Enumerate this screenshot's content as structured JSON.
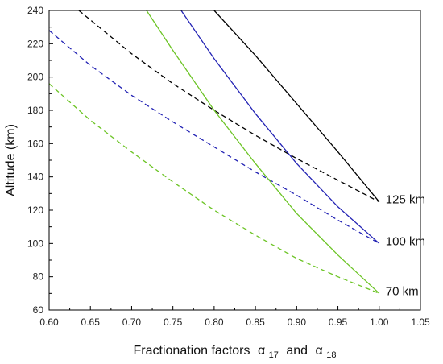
{
  "chart_data": {
    "type": "line",
    "xlabel": "Fractionation factors",
    "xlabel_greek": "α",
    "xlabel_sub1": "17",
    "xlabel_and": "and",
    "xlabel_sub2": "18",
    "ylabel": "Altitude (km)",
    "xlim": [
      0.6,
      1.05
    ],
    "ylim": [
      60,
      240
    ],
    "x_ticks": [
      "0.60",
      "0.65",
      "0.70",
      "0.75",
      "0.80",
      "0.85",
      "0.90",
      "0.95",
      "1.00",
      "1.05"
    ],
    "y_ticks": [
      "60",
      "80",
      "100",
      "120",
      "140",
      "160",
      "180",
      "200",
      "220",
      "240"
    ],
    "grid": false,
    "colors": {
      "black": "#000000",
      "blue": "#2323b4",
      "green": "#6cc425"
    },
    "series": [
      {
        "color": "black",
        "style": "solid",
        "points": [
          [
            0.8,
            240
          ],
          [
            0.85,
            213
          ],
          [
            0.9,
            184
          ],
          [
            0.95,
            155
          ],
          [
            1.0,
            125
          ]
        ]
      },
      {
        "color": "black",
        "style": "dashed",
        "points": [
          [
            0.636,
            240
          ],
          [
            0.7,
            214
          ],
          [
            0.75,
            196
          ],
          [
            0.8,
            180
          ],
          [
            0.85,
            165
          ],
          [
            0.9,
            151
          ],
          [
            0.95,
            138
          ],
          [
            1.0,
            125
          ]
        ]
      },
      {
        "color": "blue",
        "style": "solid",
        "points": [
          [
            0.76,
            240
          ],
          [
            0.8,
            211
          ],
          [
            0.85,
            178
          ],
          [
            0.9,
            148
          ],
          [
            0.95,
            122
          ],
          [
            1.0,
            100
          ]
        ]
      },
      {
        "color": "blue",
        "style": "dashed",
        "points": [
          [
            0.6,
            228
          ],
          [
            0.65,
            207
          ],
          [
            0.7,
            189
          ],
          [
            0.75,
            173
          ],
          [
            0.8,
            158
          ],
          [
            0.85,
            143
          ],
          [
            0.9,
            129
          ],
          [
            0.95,
            114
          ],
          [
            1.0,
            100
          ]
        ]
      },
      {
        "color": "green",
        "style": "solid",
        "points": [
          [
            0.718,
            240
          ],
          [
            0.75,
            216
          ],
          [
            0.8,
            180
          ],
          [
            0.85,
            148
          ],
          [
            0.9,
            118
          ],
          [
            0.95,
            93
          ],
          [
            1.0,
            70
          ]
        ]
      },
      {
        "color": "green",
        "style": "dashed",
        "points": [
          [
            0.6,
            196
          ],
          [
            0.65,
            174
          ],
          [
            0.7,
            155
          ],
          [
            0.75,
            137
          ],
          [
            0.8,
            120
          ],
          [
            0.85,
            105
          ],
          [
            0.9,
            91
          ],
          [
            0.95,
            80
          ],
          [
            1.0,
            70
          ]
        ]
      }
    ],
    "annotations": [
      {
        "text": "125 km",
        "x": 1.0,
        "y": 125
      },
      {
        "text": "100 km",
        "x": 1.0,
        "y": 100
      },
      {
        "text": "70 km",
        "x": 1.0,
        "y": 70
      }
    ]
  }
}
